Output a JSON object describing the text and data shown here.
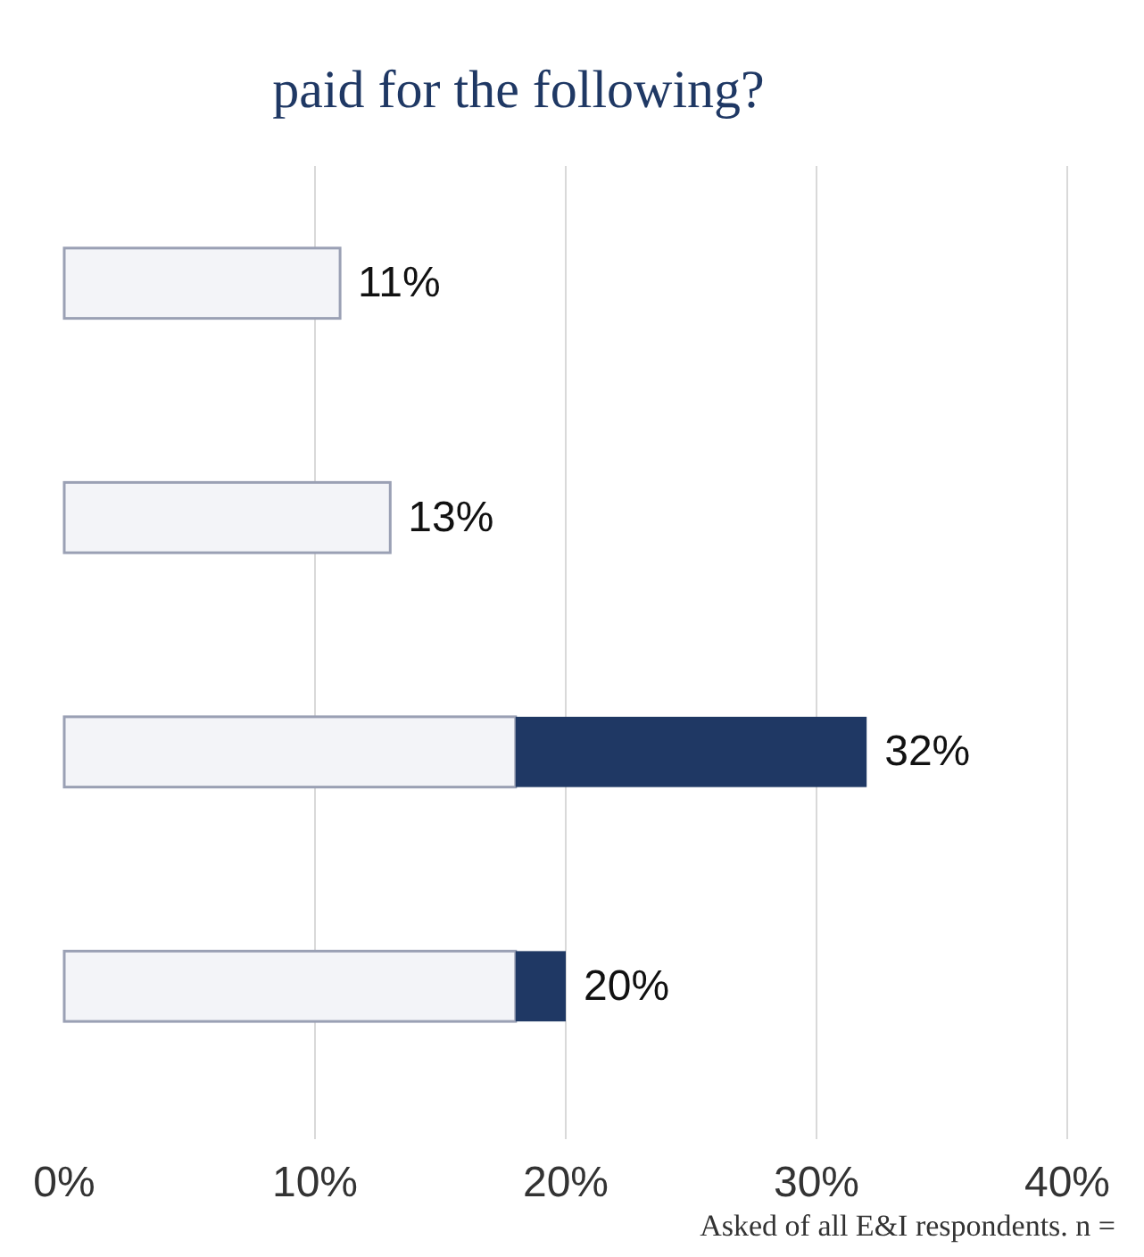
{
  "chart_data": {
    "type": "bar",
    "orientation": "horizontal",
    "stacked": true,
    "title": "paid for the following?",
    "categories": [
      null,
      null,
      null,
      null
    ],
    "series": [
      {
        "color": "#f3f4f8",
        "values": [
          11,
          13,
          18,
          18
        ]
      },
      {
        "color": "#1f3864",
        "values": [
          0,
          0,
          14,
          2
        ]
      }
    ],
    "totals": [
      "11%",
      "13%",
      "32%",
      "20%"
    ],
    "xlim": [
      0,
      40
    ],
    "xticks": [
      {
        "value": 0,
        "label": "0%"
      },
      {
        "value": 10,
        "label": "10%"
      },
      {
        "value": 20,
        "label": "20%"
      },
      {
        "value": 30,
        "label": "30%"
      },
      {
        "value": 40,
        "label": "40%"
      }
    ],
    "grid": "x",
    "annotations": [
      "Asked of all E&I respondents. n ="
    ]
  }
}
